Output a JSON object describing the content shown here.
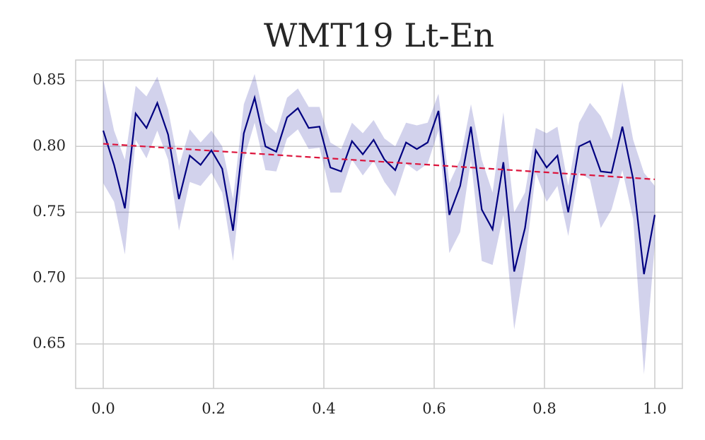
{
  "chart_data": {
    "type": "line",
    "title": "WMT19 Lt-En",
    "x": [
      0,
      0.0196,
      0.0392,
      0.0588,
      0.0784,
      0.098,
      0.1176,
      0.1373,
      0.1569,
      0.1765,
      0.1961,
      0.2157,
      0.2353,
      0.2549,
      0.2745,
      0.2941,
      0.3137,
      0.3333,
      0.3529,
      0.3725,
      0.3922,
      0.4118,
      0.4314,
      0.451,
      0.4706,
      0.4902,
      0.5098,
      0.5294,
      0.549,
      0.5686,
      0.5882,
      0.6078,
      0.6275,
      0.6471,
      0.6667,
      0.6863,
      0.7059,
      0.7255,
      0.7451,
      0.7647,
      0.7843,
      0.8039,
      0.8235,
      0.8431,
      0.8627,
      0.8824,
      0.902,
      0.9216,
      0.9412,
      0.9608,
      0.9804,
      1.0
    ],
    "series": [
      {
        "color": "#000080",
        "band_color": "#4b4bb5",
        "values": [
          0.812,
          0.786,
          0.753,
          0.825,
          0.814,
          0.833,
          0.809,
          0.76,
          0.793,
          0.786,
          0.797,
          0.783,
          0.736,
          0.81,
          0.837,
          0.8,
          0.796,
          0.822,
          0.829,
          0.814,
          0.815,
          0.784,
          0.781,
          0.804,
          0.794,
          0.805,
          0.79,
          0.782,
          0.803,
          0.798,
          0.803,
          0.827,
          0.748,
          0.77,
          0.815,
          0.752,
          0.737,
          0.788,
          0.705,
          0.738,
          0.797,
          0.784,
          0.793,
          0.75,
          0.8,
          0.804,
          0.781,
          0.78,
          0.815,
          0.775,
          0.703,
          0.748
        ],
        "upper": [
          0.851,
          0.812,
          0.79,
          0.846,
          0.838,
          0.853,
          0.828,
          0.785,
          0.813,
          0.803,
          0.812,
          0.8,
          0.76,
          0.832,
          0.855,
          0.818,
          0.81,
          0.837,
          0.844,
          0.83,
          0.83,
          0.803,
          0.798,
          0.818,
          0.81,
          0.82,
          0.806,
          0.8,
          0.818,
          0.816,
          0.818,
          0.84,
          0.772,
          0.79,
          0.832,
          0.79,
          0.765,
          0.826,
          0.75,
          0.765,
          0.814,
          0.81,
          0.815,
          0.77,
          0.818,
          0.833,
          0.823,
          0.805,
          0.849,
          0.805,
          0.78,
          0.77
        ],
        "lower": [
          0.772,
          0.758,
          0.718,
          0.805,
          0.791,
          0.812,
          0.79,
          0.736,
          0.773,
          0.77,
          0.78,
          0.765,
          0.713,
          0.79,
          0.818,
          0.782,
          0.781,
          0.806,
          0.813,
          0.798,
          0.799,
          0.765,
          0.765,
          0.79,
          0.778,
          0.789,
          0.773,
          0.762,
          0.787,
          0.781,
          0.787,
          0.812,
          0.719,
          0.735,
          0.79,
          0.713,
          0.71,
          0.748,
          0.661,
          0.712,
          0.78,
          0.758,
          0.77,
          0.732,
          0.78,
          0.775,
          0.738,
          0.752,
          0.782,
          0.745,
          0.627,
          0.725
        ]
      }
    ],
    "trend": {
      "x": [
        0,
        1.0
      ],
      "values": [
        0.802,
        0.775
      ],
      "color": "#dc143c",
      "dashed": true
    },
    "xlim": [
      -0.05,
      1.05
    ],
    "xticks": [
      {
        "value": 0,
        "label": "0.0"
      },
      0.2,
      0.4,
      0.6,
      0.8,
      {
        "value": 1.0,
        "label": "1.0"
      }
    ],
    "ylim": [
      0.6162,
      0.8656
    ],
    "yticks": [
      0.65,
      {
        "value": 0.7,
        "label": "0.70"
      },
      0.75,
      {
        "value": 0.8,
        "label": "0.80"
      },
      0.85
    ],
    "grid": true
  }
}
